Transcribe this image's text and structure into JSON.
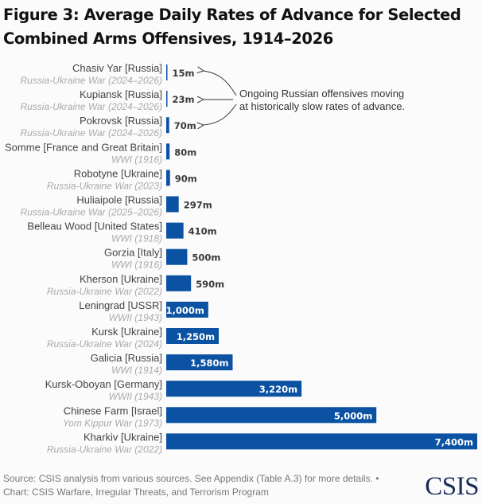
{
  "header": {
    "title": "Figure 3: Average Daily Rates of Advance for Selected Combined Arms Offensives, 1914–2026"
  },
  "chart_data": {
    "type": "bar",
    "orientation": "horizontal",
    "title": "Figure 3: Average Daily Rates of Advance for Selected Combined Arms Offensives, 1914–2026",
    "xlabel": "",
    "ylabel": "",
    "unit": "m",
    "bar_color": "#0b52a3",
    "categories": [
      {
        "name": "Chasiv Yar [Russia]",
        "conflict": "Russia-Ukraine War (2024–2026)"
      },
      {
        "name": "Kupiansk [Russia]",
        "conflict": "Russia-Ukraine War (2024–2026)"
      },
      {
        "name": "Pokrovsk [Russia]",
        "conflict": "Russia-Ukraine War (2024–2026)"
      },
      {
        "name": "Somme [France and Great Britain]",
        "conflict": "WWI (1916)"
      },
      {
        "name": "Robotyne [Ukraine]",
        "conflict": "Russia-Ukraine War (2023)"
      },
      {
        "name": "Huliaipole [Russia]",
        "conflict": "Russia-Ukraine War (2025–2026)"
      },
      {
        "name": "Belleau Wood [United States]",
        "conflict": "WWI (1918)"
      },
      {
        "name": "Gorzia [Italy]",
        "conflict": "WWI (1916)"
      },
      {
        "name": "Kherson [Ukraine]",
        "conflict": "Russia-Ukraine War (2022)"
      },
      {
        "name": "Leningrad [USSR]",
        "conflict": "WWII (1943)"
      },
      {
        "name": "Kursk [Ukraine]",
        "conflict": "Russia-Ukraine War (2024)"
      },
      {
        "name": "Galicia [Russia]",
        "conflict": "WWI (1914)"
      },
      {
        "name": "Kursk-Oboyan [Germany]",
        "conflict": "WWII (1943)"
      },
      {
        "name": "Chinese Farm [Israel]",
        "conflict": "Yom Kippur War (1973)"
      },
      {
        "name": "Kharkiv [Ukraine]",
        "conflict": "Russia-Ukraine War (2022)"
      }
    ],
    "values": [
      15,
      23,
      70,
      80,
      90,
      297,
      410,
      500,
      590,
      1000,
      1250,
      1580,
      3220,
      5000,
      7400
    ],
    "value_labels": [
      "15m",
      "23m",
      "70m",
      "80m",
      "90m",
      "297m",
      "410m",
      "500m",
      "590m",
      "1,000m",
      "1,250m",
      "1,580m",
      "3,220m",
      "5,000m",
      "7,400m"
    ],
    "xlim": [
      0,
      7400
    ],
    "grid": false,
    "legend": "none",
    "annotation": {
      "lines": [
        "Ongoing Russian offensives moving",
        "at historically slow rates of advance."
      ],
      "targets": [
        "Chasiv Yar [Russia]",
        "Kupiansk [Russia]",
        "Pokrovsk [Russia]"
      ]
    }
  },
  "footer": {
    "source": "Source: CSIS analysis from various sources. See Appendix (Table A.3) for more details. •",
    "credit": "Chart: CSIS Warfare, Irregular Threats, and Terrorism Program",
    "logo": "CSIS"
  }
}
